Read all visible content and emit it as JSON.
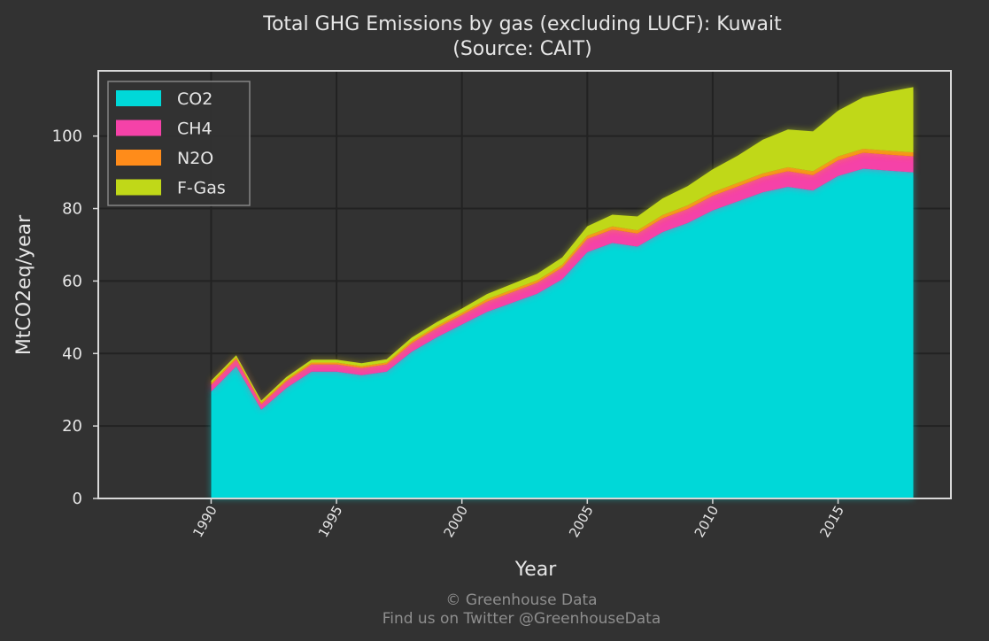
{
  "chart_data": {
    "type": "area",
    "stacked": true,
    "title": "Total GHG Emissions by gas (excluding LUCF): Kuwait",
    "subtitle": "(Source: CAIT)",
    "xlabel": "Year",
    "ylabel": "MtCO2eq/year",
    "xlim": [
      1985.5,
      2019.5
    ],
    "ylim": [
      0,
      118
    ],
    "xticks": [
      1990,
      1995,
      2000,
      2005,
      2010,
      2015
    ],
    "yticks": [
      0,
      20,
      40,
      60,
      80,
      100
    ],
    "grid": true,
    "legend_position": "top-left",
    "x": [
      1990,
      1991,
      1992,
      1993,
      1994,
      1995,
      1996,
      1997,
      1998,
      1999,
      2000,
      2001,
      2002,
      2003,
      2004,
      2005,
      2006,
      2007,
      2008,
      2009,
      2010,
      2011,
      2012,
      2013,
      2014,
      2015,
      2016,
      2017,
      2018
    ],
    "series": [
      {
        "name": "CO2",
        "color": "#00d8d8",
        "values": [
          29.5,
          36.5,
          24.5,
          30.5,
          35,
          35,
          34,
          35,
          40.5,
          44.5,
          48,
          51.5,
          54,
          56.5,
          60.5,
          68,
          70.5,
          69.5,
          73.5,
          76,
          79.5,
          82,
          84.5,
          86,
          85,
          89,
          91,
          90.5,
          90
        ]
      },
      {
        "name": "CH4",
        "color": "#f542a8",
        "values": [
          1.8,
          1.9,
          1.5,
          1.8,
          2.0,
          2.0,
          2.0,
          2.0,
          2.3,
          2.5,
          2.6,
          2.8,
          2.9,
          3.0,
          3.2,
          3.6,
          3.7,
          3.6,
          3.8,
          3.9,
          4.0,
          4.1,
          4.2,
          4.3,
          4.2,
          4.3,
          4.4,
          4.4,
          4.4
        ]
      },
      {
        "name": "N2O",
        "color": "#ff8c1a",
        "values": [
          0.5,
          0.5,
          0.4,
          0.5,
          0.5,
          0.5,
          0.5,
          0.5,
          0.6,
          0.6,
          0.6,
          0.7,
          0.7,
          0.7,
          0.8,
          0.9,
          0.9,
          0.9,
          0.9,
          1.0,
          1.0,
          1.0,
          1.0,
          1.1,
          1.1,
          1.1,
          1.1,
          1.1,
          1.1
        ]
      },
      {
        "name": "F-Gas",
        "color": "#c0d818",
        "values": [
          0.7,
          0.6,
          0.6,
          0.7,
          0.8,
          0.8,
          0.8,
          0.9,
          1.0,
          1.1,
          1.2,
          1.4,
          1.6,
          1.8,
          2.0,
          2.6,
          3.2,
          3.8,
          4.6,
          5.3,
          6.3,
          7.5,
          9.3,
          10.4,
          11.0,
          12.6,
          14.2,
          16.2,
          18.0
        ]
      }
    ]
  },
  "footer": {
    "copyright": "© Greenhouse Data",
    "twitter": "Find us on Twitter @GreenhouseData"
  }
}
